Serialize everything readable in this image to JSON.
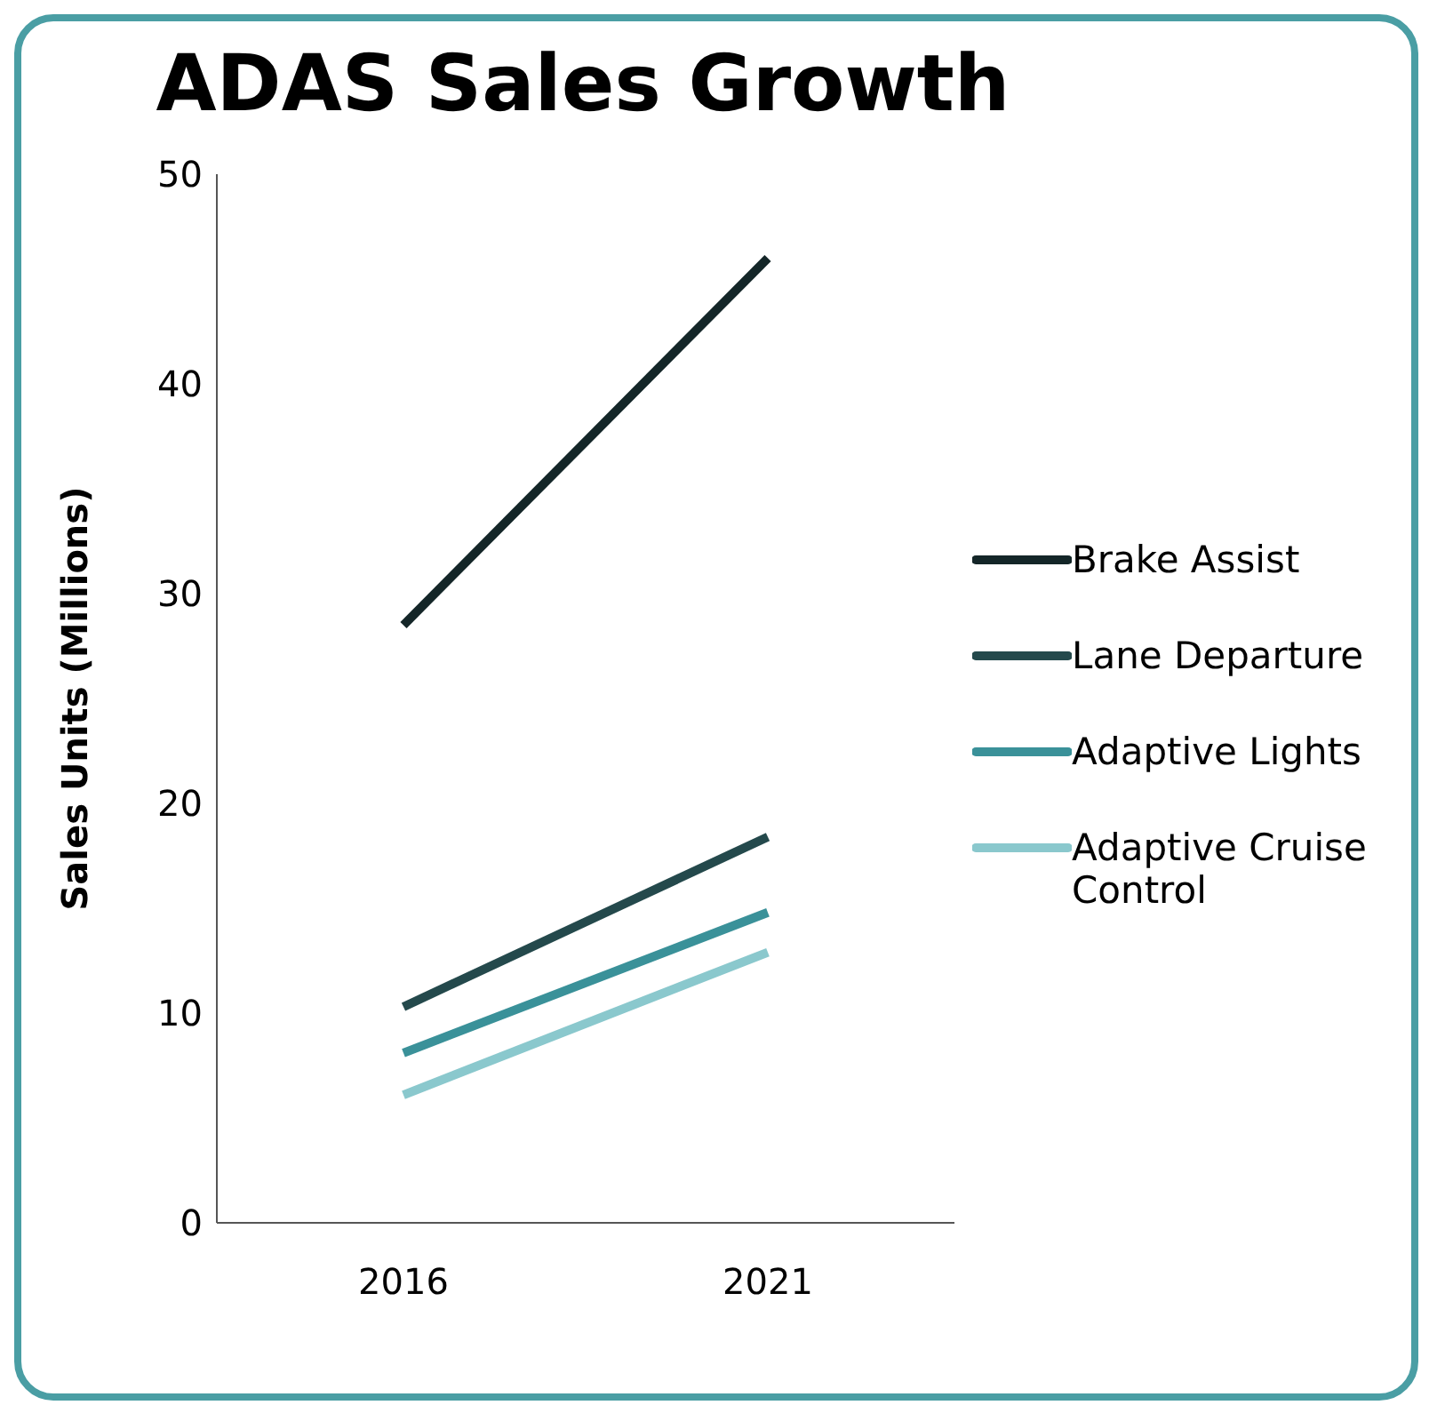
{
  "chart_data": {
    "type": "line",
    "title": "ADAS Sales Growth",
    "ylabel": "Sales Units (Millions)",
    "categories": [
      "2016",
      "2021"
    ],
    "series": [
      {
        "name": "Brake Assist",
        "color": "#142628",
        "values": [
          28.5,
          46.0
        ]
      },
      {
        "name": "Lane Departure",
        "color": "#24494c",
        "values": [
          10.3,
          18.4
        ]
      },
      {
        "name": "Adaptive Lights",
        "color": "#3a9199",
        "values": [
          8.1,
          14.8
        ]
      },
      {
        "name": "Adaptive Cruise Control",
        "color": "#8ac8cd",
        "values": [
          6.1,
          12.9
        ]
      }
    ],
    "ylim": [
      0,
      50
    ],
    "yticks": [
      0,
      10,
      20,
      30,
      40,
      50
    ],
    "grid": false,
    "legend": "right",
    "marker": "none",
    "line_style": "solid"
  }
}
